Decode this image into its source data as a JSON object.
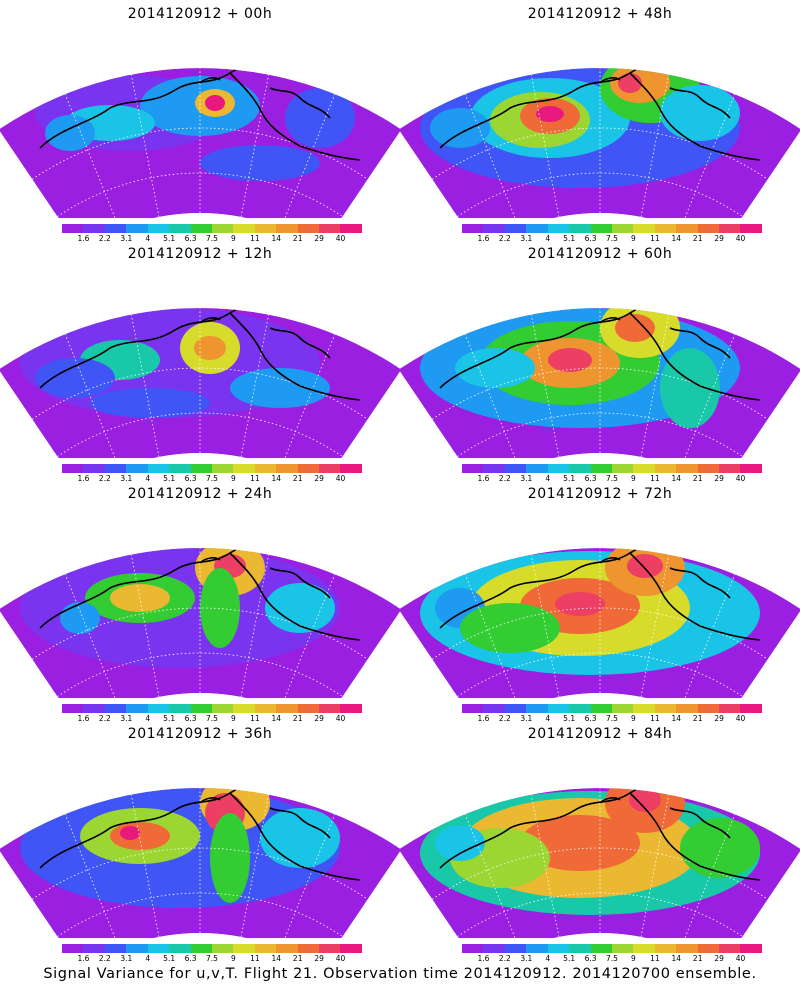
{
  "caption": "Signal Variance for u,v,T. Flight 21. Observation time 2014120912. 2014120700 ensemble.",
  "colorbar": {
    "labels": [
      "1.6",
      "2.2",
      "3.1",
      "4",
      "5.1",
      "6.3",
      "7.5",
      "9",
      "11",
      "14",
      "21",
      "29",
      "40"
    ],
    "colors": [
      "#9b1fe0",
      "#7a33ee",
      "#3f55f5",
      "#1f9af2",
      "#19c4e6",
      "#19c8a8",
      "#33cc33",
      "#9bd633",
      "#d7dc2a",
      "#eab831",
      "#ee9530",
      "#ef6a37",
      "#ec3f63",
      "#e8197e"
    ]
  },
  "panels": [
    {
      "title": "2014120912 + 00h"
    },
    {
      "title": "2014120912 + 48h"
    },
    {
      "title": "2014120912 + 12h"
    },
    {
      "title": "2014120912 + 60h"
    },
    {
      "title": "2014120912 + 24h"
    },
    {
      "title": "2014120912 + 72h"
    },
    {
      "title": "2014120912 + 36h"
    },
    {
      "title": "2014120912 + 84h"
    }
  ]
}
